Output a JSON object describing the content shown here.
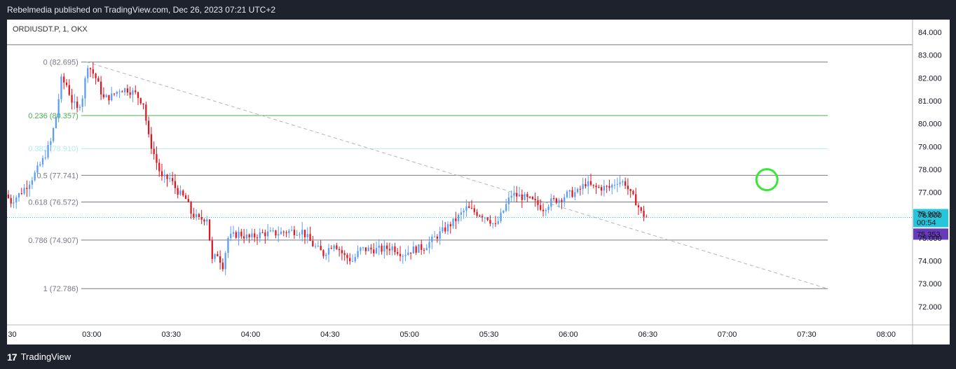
{
  "header": {
    "publisher_text": "Rebelmedia published on TradingView.com, Dec 26, 2023 07:21 UTC+2"
  },
  "footer": {
    "brand": "TradingView",
    "logo_glyph": "17"
  },
  "symbol": {
    "label": "ORDIUSDT.P, 1, OKX"
  },
  "colors": {
    "up": "#5b9cf6",
    "down": "#e0161f",
    "grid_line": "#787b86",
    "fib_236": "#4caf50",
    "fib_382": "#b2ebf2",
    "price_badge": "#26c6da",
    "alt_badge": "#673ab7",
    "marker_circle": "#39e639"
  },
  "chart_data": {
    "type": "candlestick",
    "title": "ORDIUSDT.P, 1, OKX",
    "y_axis": {
      "ylim": [
        71.2,
        84.55
      ],
      "ticks": [
        72.0,
        73.0,
        74.0,
        75.0,
        76.0,
        77.0,
        78.0,
        79.0,
        80.0,
        81.0,
        82.0,
        83.0,
        84.0
      ],
      "tick_labels": [
        "72.000",
        "73.000",
        "74.000",
        "75.000",
        "76.000",
        "77.000",
        "78.000",
        "79.000",
        "80.000",
        "81.000",
        "82.000",
        "83.000",
        "84.000"
      ]
    },
    "x_axis": {
      "start_minute": 148,
      "end_minute": 490,
      "ticks": [
        150,
        180,
        210,
        240,
        270,
        300,
        330,
        360,
        390,
        420,
        450,
        480
      ],
      "tick_labels": [
        "30",
        "03:00",
        "03:30",
        "04:00",
        "04:30",
        "05:00",
        "05:30",
        "06:00",
        "06:30",
        "07:00",
        "07:30",
        "08:00"
      ]
    },
    "fibonacci": {
      "start_minute": 176,
      "end_minute": 458,
      "levels": [
        {
          "ratio": "0",
          "price": 82.695,
          "label": "0 (82.695)",
          "color": "#787b86"
        },
        {
          "ratio": "0.236",
          "price": 80.357,
          "label": "0.236 (80.357)",
          "color": "#4caf50"
        },
        {
          "ratio": "0.382",
          "price": 78.91,
          "label": "0.382 (78.910)",
          "color": "#b2ebf2"
        },
        {
          "ratio": "0.5",
          "price": 77.741,
          "label": "0.5 (77.741)",
          "color": "#787b86"
        },
        {
          "ratio": "0.618",
          "price": 76.572,
          "label": "0.618 (76.572)",
          "color": "#787b86"
        },
        {
          "ratio": "0.786",
          "price": 74.907,
          "label": "0.786 (74.907)",
          "color": "#787b86"
        },
        {
          "ratio": "1",
          "price": 72.786,
          "label": "1 (72.786)",
          "color": "#787b86"
        }
      ]
    },
    "trend_line": {
      "start": {
        "minute": 178,
        "price": 82.7
      },
      "end": {
        "minute": 458,
        "price": 72.78
      }
    },
    "horizontal_lines": [
      83.45
    ],
    "current_price": {
      "value": 75.9,
      "label": "75.900",
      "countdown": "00:54"
    },
    "alt_price": {
      "value": 75.353,
      "label": "75.353"
    },
    "marker": {
      "minute": 435,
      "price": 77.55,
      "shape": "circle"
    },
    "path_keypoints": [
      [
        148,
        76.9
      ],
      [
        150,
        76.6
      ],
      [
        153,
        76.9
      ],
      [
        156,
        77.3
      ],
      [
        159,
        77.8
      ],
      [
        162,
        78.4
      ],
      [
        165,
        79.2
      ],
      [
        167,
        80.3
      ],
      [
        169,
        81.9
      ],
      [
        171,
        81.7
      ],
      [
        173,
        81.0
      ],
      [
        175,
        80.6
      ],
      [
        177,
        81.2
      ],
      [
        179,
        82.6
      ],
      [
        182,
        82.0
      ],
      [
        185,
        81.1
      ],
      [
        188,
        81.2
      ],
      [
        191,
        81.5
      ],
      [
        194,
        81.5
      ],
      [
        197,
        81.3
      ],
      [
        200,
        80.9
      ],
      [
        202,
        79.4
      ],
      [
        205,
        78.3
      ],
      [
        207,
        77.6
      ],
      [
        210,
        77.6
      ],
      [
        212,
        77.2
      ],
      [
        214,
        76.9
      ],
      [
        216,
        76.7
      ],
      [
        218,
        76.1
      ],
      [
        221,
        75.8
      ],
      [
        224,
        75.9
      ],
      [
        226,
        74.0
      ],
      [
        228,
        74.3
      ],
      [
        230,
        73.8
      ],
      [
        232,
        75.0
      ],
      [
        236,
        75.2
      ],
      [
        240,
        75.0
      ],
      [
        245,
        75.2
      ],
      [
        250,
        75.2
      ],
      [
        255,
        75.3
      ],
      [
        260,
        75.3
      ],
      [
        264,
        74.7
      ],
      [
        268,
        74.3
      ],
      [
        272,
        74.8
      ],
      [
        276,
        74.2
      ],
      [
        279,
        74.0
      ],
      [
        282,
        74.5
      ],
      [
        286,
        74.5
      ],
      [
        290,
        74.5
      ],
      [
        294,
        74.6
      ],
      [
        298,
        74.3
      ],
      [
        302,
        74.5
      ],
      [
        306,
        74.6
      ],
      [
        310,
        75.0
      ],
      [
        314,
        75.4
      ],
      [
        318,
        75.8
      ],
      [
        322,
        76.3
      ],
      [
        326,
        76.1
      ],
      [
        330,
        75.9
      ],
      [
        333,
        75.5
      ],
      [
        336,
        76.2
      ],
      [
        339,
        76.9
      ],
      [
        343,
        76.8
      ],
      [
        347,
        76.6
      ],
      [
        351,
        76.3
      ],
      [
        354,
        76.6
      ],
      [
        357,
        76.7
      ],
      [
        360,
        76.9
      ],
      [
        364,
        77.0
      ],
      [
        367,
        77.4
      ],
      [
        370,
        77.2
      ],
      [
        373,
        77.2
      ],
      [
        376,
        77.2
      ],
      [
        379,
        77.5
      ],
      [
        382,
        77.4
      ],
      [
        384,
        76.9
      ],
      [
        386,
        76.6
      ],
      [
        388,
        76.1
      ],
      [
        390,
        75.9
      ]
    ]
  }
}
